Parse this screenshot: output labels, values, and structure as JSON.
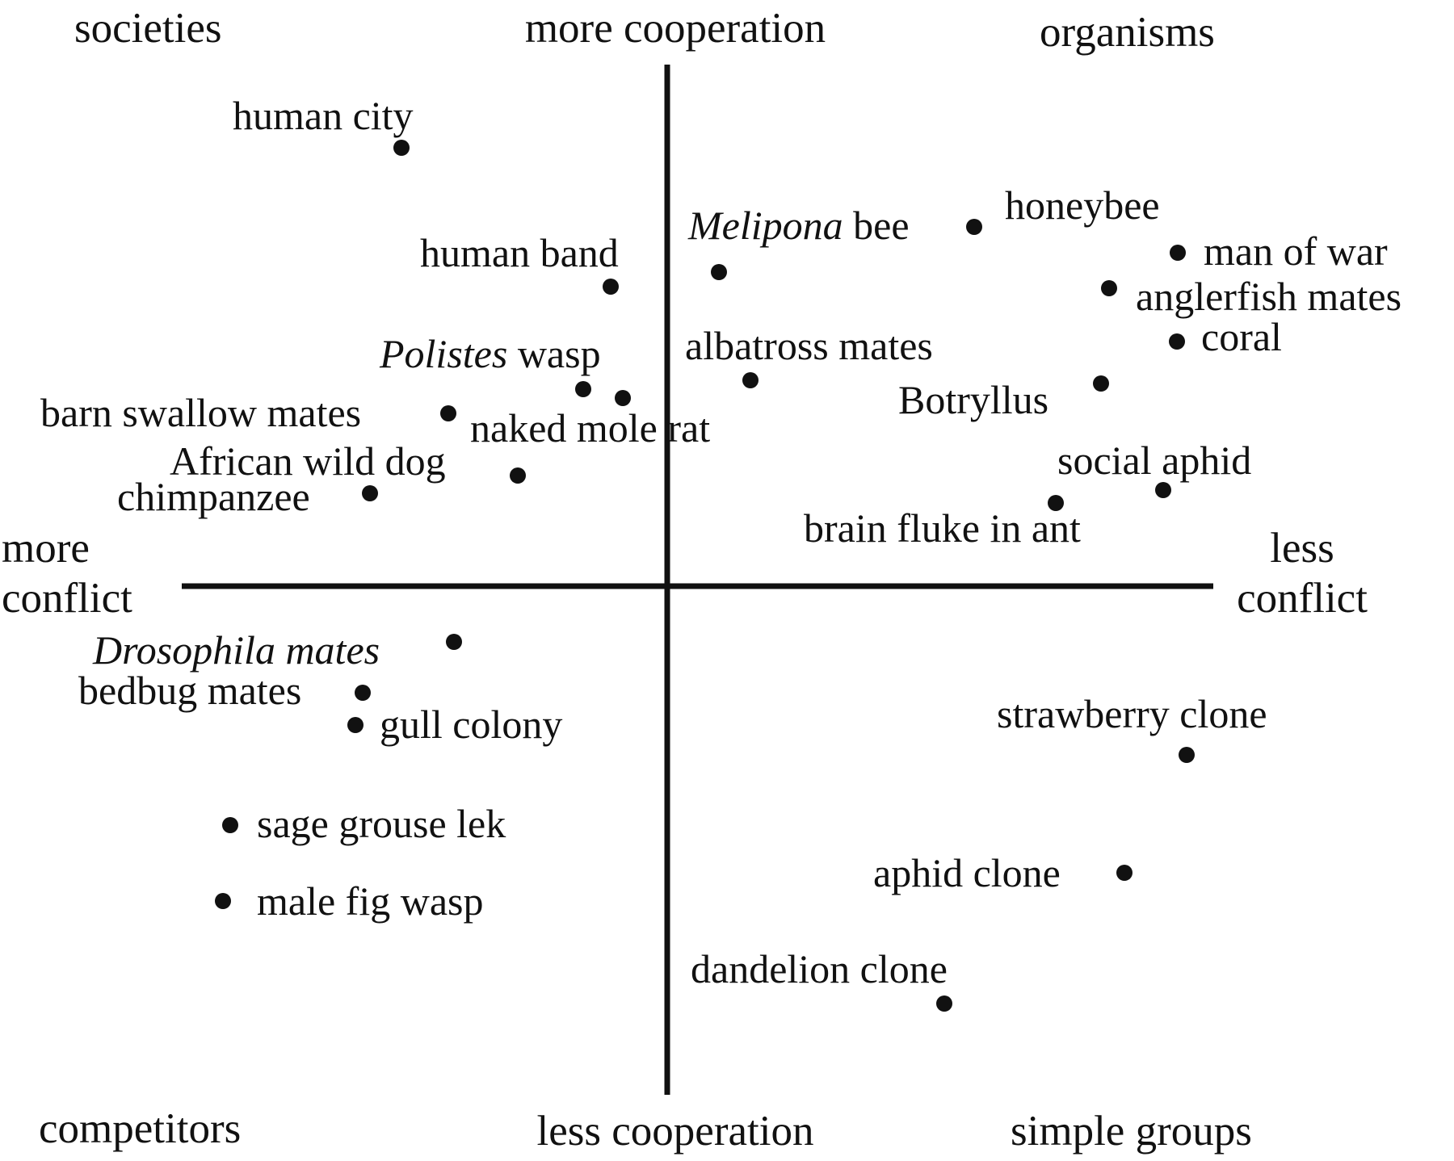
{
  "axes": {
    "top": "more cooperation",
    "bottom": "less cooperation",
    "left_line1": "more",
    "left_line2": "conflict",
    "right_line1": "less",
    "right_line2": "conflict"
  },
  "quadrants": {
    "top_left": "societies",
    "top_right": "organisms",
    "bottom_left": "competitors",
    "bottom_right": "simple groups"
  },
  "points": [
    {
      "id": "human-city",
      "label": "human city",
      "italic": "",
      "rest": ""
    },
    {
      "id": "human-band",
      "label": "human band",
      "italic": "",
      "rest": ""
    },
    {
      "id": "polistes-wasp",
      "label": "",
      "italic": "Polistes",
      "rest": " wasp"
    },
    {
      "id": "barn-swallow-mates",
      "label": "barn swallow mates",
      "italic": "",
      "rest": ""
    },
    {
      "id": "naked-mole-rat",
      "label": "naked mole rat",
      "italic": "",
      "rest": ""
    },
    {
      "id": "african-wild-dog",
      "label": "African wild dog",
      "italic": "",
      "rest": ""
    },
    {
      "id": "chimpanzee",
      "label": "chimpanzee",
      "italic": "",
      "rest": ""
    },
    {
      "id": "melipona-bee",
      "label": "",
      "italic": "Melipona",
      "rest": " bee"
    },
    {
      "id": "honeybee",
      "label": "honeybee",
      "italic": "",
      "rest": ""
    },
    {
      "id": "man-of-war",
      "label": "man of war",
      "italic": "",
      "rest": ""
    },
    {
      "id": "anglerfish-mates",
      "label": "anglerfish mates",
      "italic": "",
      "rest": ""
    },
    {
      "id": "coral",
      "label": "coral",
      "italic": "",
      "rest": ""
    },
    {
      "id": "albatross-mates",
      "label": "albatross mates",
      "italic": "",
      "rest": ""
    },
    {
      "id": "botryllus",
      "label": "Botryllus",
      "italic": "",
      "rest": ""
    },
    {
      "id": "social-aphid",
      "label": "social aphid",
      "italic": "",
      "rest": ""
    },
    {
      "id": "brain-fluke-in-ant",
      "label": "brain fluke in ant",
      "italic": "",
      "rest": ""
    },
    {
      "id": "drosophila-mates",
      "label": "",
      "italic": "Drosophila mates",
      "rest": ""
    },
    {
      "id": "bedbug-mates",
      "label": "bedbug mates",
      "italic": "",
      "rest": ""
    },
    {
      "id": "gull-colony",
      "label": "gull colony",
      "italic": "",
      "rest": ""
    },
    {
      "id": "sage-grouse-lek",
      "label": "sage grouse lek",
      "italic": "",
      "rest": ""
    },
    {
      "id": "male-fig-wasp",
      "label": "male fig wasp",
      "italic": "",
      "rest": ""
    },
    {
      "id": "strawberry-clone",
      "label": "strawberry clone",
      "italic": "",
      "rest": ""
    },
    {
      "id": "aphid-clone",
      "label": "aphid clone",
      "italic": "",
      "rest": ""
    },
    {
      "id": "dandelion-clone",
      "label": "dandelion clone",
      "italic": "",
      "rest": ""
    }
  ]
}
